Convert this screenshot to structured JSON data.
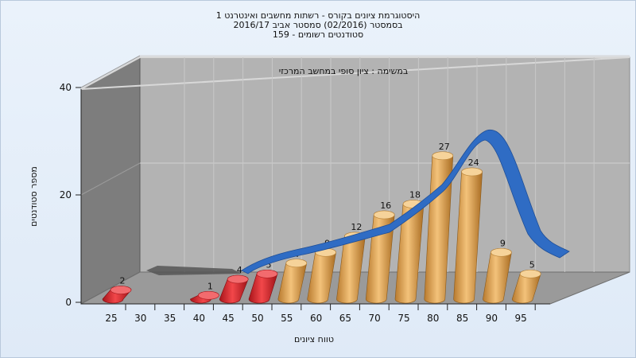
{
  "chart_data": {
    "type": "bar",
    "title": [
      "היסטוגרמת ציונים בקורס - רשתות מחשבים ואינטרנט 1",
      "בסמסטר (02/2016) סמסטר אביב 2016/17",
      "סטודנטים רשומים - 159"
    ],
    "subtitle": "במשימה : ציון סופי במחשב המרכזי",
    "xlabel": "טווח ציונים",
    "ylabel": "מספר סטודנטים",
    "categories": [
      "25",
      "30",
      "35",
      "40",
      "45",
      "50",
      "55",
      "60",
      "65",
      "70",
      "75",
      "80",
      "85",
      "90",
      "95"
    ],
    "values": [
      2,
      0,
      0,
      1,
      4,
      5,
      7,
      9,
      12,
      16,
      18,
      27,
      24,
      9,
      5
    ],
    "bar_colors": {
      "fail": "#e8262a",
      "pass": "#e0a14a"
    },
    "fail_categories": [
      "25",
      "30",
      "35",
      "40",
      "45",
      "50"
    ],
    "curve_color": "#2f6cc4",
    "curve_shadow_color": "#555555",
    "ylim": [
      0,
      40
    ],
    "yticks": [
      0,
      20,
      40
    ],
    "grid": true,
    "legend": "none"
  }
}
